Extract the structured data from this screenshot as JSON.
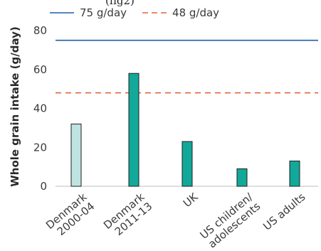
{
  "top_fragment": "(fig2)",
  "chart_data": {
    "type": "bar",
    "categories": [
      [
        "Denmark",
        "2000-04"
      ],
      [
        "Denmark",
        "2011-13"
      ],
      [
        "UK"
      ],
      [
        "US children/",
        "adolescents"
      ],
      [
        "US adults"
      ]
    ],
    "values": [
      32,
      58,
      23,
      9,
      13
    ],
    "bar_colors": [
      "#bfe3e1",
      "#12a89a",
      "#12a89a",
      "#12a89a",
      "#12a89a"
    ],
    "bar_outline": "#1f1f1f",
    "ylabel": "Whole grain intake (g/day)",
    "ylim": [
      0,
      80
    ],
    "yticks": [
      0,
      20,
      40,
      60,
      80
    ],
    "grid": false,
    "legend_position": "top-left",
    "reference_lines": [
      {
        "name": "75 g/day",
        "value": 75,
        "color": "#1f5fa8",
        "style": "solid"
      },
      {
        "name": "48 g/day",
        "value": 48,
        "color": "#e0643c",
        "style": "dashed"
      }
    ]
  }
}
